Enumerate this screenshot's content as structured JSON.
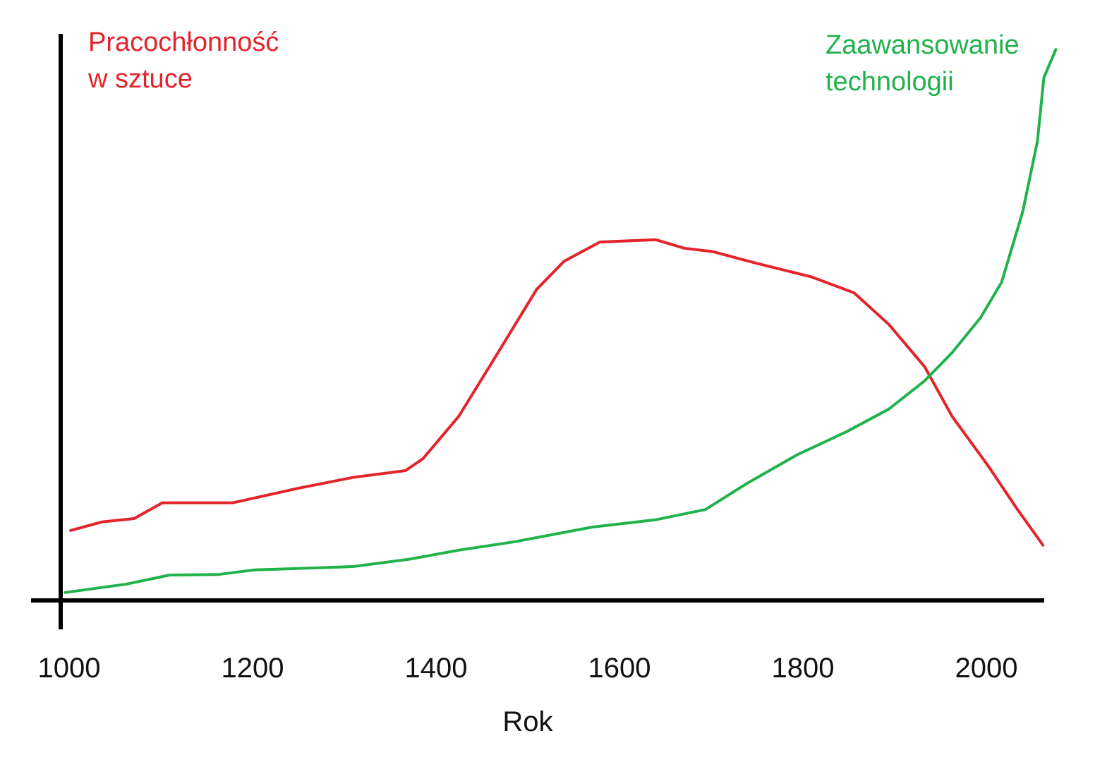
{
  "chart_data": {
    "type": "line",
    "title": "",
    "xlabel": "Rok",
    "ylabel": "",
    "xlim": [
      985,
      2070
    ],
    "ylim": [
      0,
      100
    ],
    "xticks": [
      1000,
      1200,
      1400,
      1600,
      1800,
      2000
    ],
    "grid": false,
    "legend": "inline-labels",
    "series": [
      {
        "name": "Pracochłonność w sztuce",
        "label_lines": [
          "Pracochłonność",
          "w sztuce"
        ],
        "color": "#e3242b",
        "x": [
          994,
          1028,
          1063,
          1094,
          1171,
          1240,
          1302,
          1359,
          1378,
          1417,
          1455,
          1502,
          1532,
          1571,
          1632,
          1663,
          1694,
          1740,
          1802,
          1848,
          1886,
          1925,
          1955,
          1994,
          2025,
          2054
        ],
        "y": [
          12.4,
          13.9,
          14.5,
          17.3,
          17.3,
          19.8,
          21.8,
          23.0,
          25.1,
          32.6,
          42.6,
          55.1,
          60.1,
          63.5,
          63.9,
          62.4,
          61.8,
          59.8,
          57.3,
          54.5,
          48.9,
          41.4,
          32.6,
          23.9,
          16.4,
          9.8
        ]
      },
      {
        "name": "Zaawansowanie technologii",
        "label_lines": [
          "Zaawansowanie",
          "technologii"
        ],
        "color": "#22b24c",
        "x": [
          988,
          1055,
          1102,
          1155,
          1194,
          1302,
          1363,
          1417,
          1478,
          1563,
          1632,
          1686,
          1732,
          1786,
          1840,
          1886,
          1925,
          1955,
          1986,
          2009,
          2032,
          2048,
          2055,
          2068
        ],
        "y": [
          1.4,
          2.9,
          4.5,
          4.6,
          5.4,
          6.0,
          7.3,
          8.9,
          10.4,
          13.0,
          14.3,
          16.1,
          20.8,
          25.8,
          29.9,
          33.9,
          38.9,
          43.9,
          50.1,
          56.4,
          68.9,
          81.4,
          92.6,
          97.6
        ]
      }
    ]
  }
}
